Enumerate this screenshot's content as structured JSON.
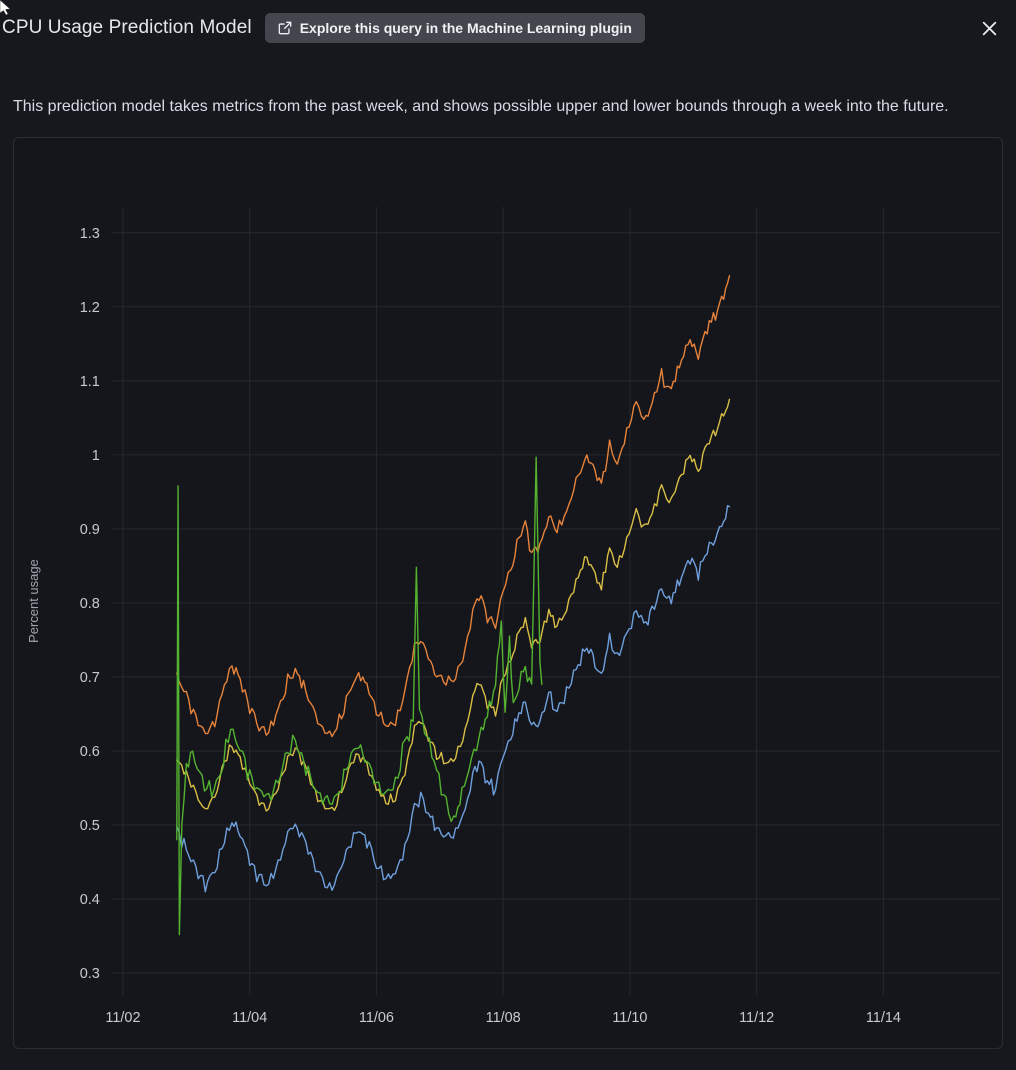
{
  "header": {
    "title": "CPU Usage Prediction Model",
    "explore_button": "Explore this query in the Machine Learning plugin"
  },
  "description": "This prediction model takes metrics from the past week, and shows possible upper and lower bounds through a week into the future.",
  "colors": {
    "background": "#17181d",
    "panel_background": "#15161b",
    "panel_border": "#2a2d34",
    "button_background": "#43464c",
    "title_text": "#e3e8ef",
    "body_text": "#d6dce6"
  },
  "chart_data": {
    "type": "line",
    "title": "",
    "xlabel": "",
    "ylabel": "Percent usage",
    "x_unit": "days since 11/02",
    "xlim": [
      -0.16,
      13.84
    ],
    "ylim": [
      0.27,
      1.335
    ],
    "grid": true,
    "legend": "none",
    "grid_color": "#26282f",
    "tick_color": "#c6cad2",
    "axis_label_color": "#9ea5ae",
    "x_ticks": [
      {
        "v": 0,
        "label": "11/02"
      },
      {
        "v": 2,
        "label": "11/04"
      },
      {
        "v": 4,
        "label": "11/06"
      },
      {
        "v": 6,
        "label": "11/08"
      },
      {
        "v": 8,
        "label": "11/10"
      },
      {
        "v": 10,
        "label": "11/12"
      },
      {
        "v": 12,
        "label": "11/14"
      }
    ],
    "y_ticks": [
      {
        "v": 0.3,
        "label": "0.3"
      },
      {
        "v": 0.4,
        "label": "0.4"
      },
      {
        "v": 0.5,
        "label": "0.5"
      },
      {
        "v": 0.6,
        "label": "0.6"
      },
      {
        "v": 0.7,
        "label": "0.7"
      },
      {
        "v": 0.8,
        "label": "0.8"
      },
      {
        "v": 0.9,
        "label": "0.9"
      },
      {
        "v": 1,
        "label": "1"
      },
      {
        "v": 1.1,
        "label": "1.1"
      },
      {
        "v": 1.2,
        "label": "1.2"
      },
      {
        "v": 1.3,
        "label": "1.3"
      }
    ],
    "series": [
      {
        "id": "lower_bound",
        "color": "#6ea0dd",
        "noise": 0.008,
        "seed": 37,
        "points": [
          [
            0.85,
            0.492
          ],
          [
            1.0,
            0.468
          ],
          [
            1.15,
            0.44
          ],
          [
            1.3,
            0.418
          ],
          [
            1.45,
            0.435
          ],
          [
            1.6,
            0.482
          ],
          [
            1.72,
            0.505
          ],
          [
            1.85,
            0.488
          ],
          [
            2.0,
            0.452
          ],
          [
            2.15,
            0.428
          ],
          [
            2.3,
            0.42
          ],
          [
            2.45,
            0.448
          ],
          [
            2.6,
            0.488
          ],
          [
            2.72,
            0.5
          ],
          [
            2.85,
            0.482
          ],
          [
            3.0,
            0.45
          ],
          [
            3.15,
            0.425
          ],
          [
            3.3,
            0.415
          ],
          [
            3.45,
            0.442
          ],
          [
            3.6,
            0.48
          ],
          [
            3.72,
            0.494
          ],
          [
            3.85,
            0.48
          ],
          [
            4.0,
            0.448
          ],
          [
            4.15,
            0.43
          ],
          [
            4.3,
            0.432
          ],
          [
            4.45,
            0.47
          ],
          [
            4.6,
            0.525
          ],
          [
            4.7,
            0.538
          ],
          [
            4.82,
            0.515
          ],
          [
            4.95,
            0.495
          ],
          [
            5.1,
            0.485
          ],
          [
            5.25,
            0.492
          ],
          [
            5.4,
            0.522
          ],
          [
            5.52,
            0.568
          ],
          [
            5.62,
            0.588
          ],
          [
            5.75,
            0.56
          ],
          [
            5.88,
            0.548
          ],
          [
            6.0,
            0.595
          ],
          [
            6.12,
            0.615
          ],
          [
            6.25,
            0.652
          ],
          [
            6.35,
            0.665
          ],
          [
            6.45,
            0.632
          ],
          [
            6.58,
            0.64
          ],
          [
            6.72,
            0.675
          ],
          [
            6.85,
            0.655
          ],
          [
            7.0,
            0.675
          ],
          [
            7.15,
            0.712
          ],
          [
            7.32,
            0.74
          ],
          [
            7.45,
            0.72
          ],
          [
            7.55,
            0.7
          ],
          [
            7.68,
            0.75
          ],
          [
            7.8,
            0.725
          ],
          [
            7.95,
            0.758
          ],
          [
            8.1,
            0.792
          ],
          [
            8.22,
            0.768
          ],
          [
            8.35,
            0.788
          ],
          [
            8.5,
            0.82
          ],
          [
            8.62,
            0.8
          ],
          [
            8.78,
            0.828
          ],
          [
            8.95,
            0.862
          ],
          [
            9.08,
            0.842
          ],
          [
            9.22,
            0.872
          ],
          [
            9.35,
            0.888
          ],
          [
            9.48,
            0.912
          ],
          [
            9.57,
            0.93
          ]
        ]
      },
      {
        "id": "prediction",
        "color": "#d9bf45",
        "noise": 0.006,
        "seed": 23,
        "points": [
          [
            0.85,
            0.59
          ],
          [
            1.0,
            0.57
          ],
          [
            1.15,
            0.542
          ],
          [
            1.3,
            0.52
          ],
          [
            1.45,
            0.538
          ],
          [
            1.6,
            0.585
          ],
          [
            1.72,
            0.608
          ],
          [
            1.85,
            0.59
          ],
          [
            2.0,
            0.556
          ],
          [
            2.15,
            0.53
          ],
          [
            2.3,
            0.522
          ],
          [
            2.45,
            0.55
          ],
          [
            2.6,
            0.59
          ],
          [
            2.72,
            0.602
          ],
          [
            2.85,
            0.585
          ],
          [
            3.0,
            0.552
          ],
          [
            3.15,
            0.528
          ],
          [
            3.3,
            0.518
          ],
          [
            3.45,
            0.545
          ],
          [
            3.6,
            0.582
          ],
          [
            3.72,
            0.596
          ],
          [
            3.85,
            0.582
          ],
          [
            4.0,
            0.55
          ],
          [
            4.15,
            0.532
          ],
          [
            4.3,
            0.534
          ],
          [
            4.45,
            0.572
          ],
          [
            4.6,
            0.63
          ],
          [
            4.7,
            0.642
          ],
          [
            4.82,
            0.618
          ],
          [
            4.95,
            0.596
          ],
          [
            5.1,
            0.585
          ],
          [
            5.25,
            0.592
          ],
          [
            5.4,
            0.625
          ],
          [
            5.52,
            0.675
          ],
          [
            5.62,
            0.695
          ],
          [
            5.75,
            0.665
          ],
          [
            5.88,
            0.652
          ],
          [
            6.0,
            0.7
          ],
          [
            6.12,
            0.722
          ],
          [
            6.25,
            0.762
          ],
          [
            6.35,
            0.778
          ],
          [
            6.45,
            0.742
          ],
          [
            6.58,
            0.75
          ],
          [
            6.72,
            0.788
          ],
          [
            6.85,
            0.768
          ],
          [
            7.0,
            0.79
          ],
          [
            7.15,
            0.83
          ],
          [
            7.32,
            0.862
          ],
          [
            7.45,
            0.84
          ],
          [
            7.55,
            0.82
          ],
          [
            7.68,
            0.875
          ],
          [
            7.8,
            0.848
          ],
          [
            7.95,
            0.885
          ],
          [
            8.1,
            0.925
          ],
          [
            8.22,
            0.9
          ],
          [
            8.35,
            0.92
          ],
          [
            8.5,
            0.958
          ],
          [
            8.62,
            0.935
          ],
          [
            8.78,
            0.965
          ],
          [
            8.95,
            1.002
          ],
          [
            9.08,
            0.98
          ],
          [
            9.22,
            1.015
          ],
          [
            9.35,
            1.03
          ],
          [
            9.48,
            1.055
          ],
          [
            9.57,
            1.075
          ]
        ]
      },
      {
        "id": "upper_bound",
        "color": "#e7833b",
        "noise": 0.007,
        "seed": 11,
        "points": [
          [
            0.85,
            0.7
          ],
          [
            1.0,
            0.675
          ],
          [
            1.15,
            0.645
          ],
          [
            1.3,
            0.622
          ],
          [
            1.45,
            0.64
          ],
          [
            1.6,
            0.69
          ],
          [
            1.72,
            0.715
          ],
          [
            1.85,
            0.695
          ],
          [
            2.0,
            0.66
          ],
          [
            2.15,
            0.632
          ],
          [
            2.3,
            0.625
          ],
          [
            2.45,
            0.655
          ],
          [
            2.6,
            0.695
          ],
          [
            2.72,
            0.708
          ],
          [
            2.85,
            0.69
          ],
          [
            3.0,
            0.655
          ],
          [
            3.15,
            0.63
          ],
          [
            3.3,
            0.62
          ],
          [
            3.45,
            0.648
          ],
          [
            3.6,
            0.688
          ],
          [
            3.72,
            0.702
          ],
          [
            3.85,
            0.688
          ],
          [
            4.0,
            0.655
          ],
          [
            4.15,
            0.636
          ],
          [
            4.3,
            0.638
          ],
          [
            4.45,
            0.68
          ],
          [
            4.6,
            0.74
          ],
          [
            4.7,
            0.752
          ],
          [
            4.82,
            0.725
          ],
          [
            4.95,
            0.702
          ],
          [
            5.1,
            0.692
          ],
          [
            5.25,
            0.7
          ],
          [
            5.4,
            0.735
          ],
          [
            5.52,
            0.79
          ],
          [
            5.62,
            0.812
          ],
          [
            5.75,
            0.782
          ],
          [
            5.88,
            0.768
          ],
          [
            6.0,
            0.82
          ],
          [
            6.12,
            0.845
          ],
          [
            6.25,
            0.888
          ],
          [
            6.35,
            0.905
          ],
          [
            6.45,
            0.868
          ],
          [
            6.58,
            0.878
          ],
          [
            6.72,
            0.918
          ],
          [
            6.85,
            0.898
          ],
          [
            7.0,
            0.922
          ],
          [
            7.15,
            0.965
          ],
          [
            7.32,
            1.0
          ],
          [
            7.45,
            0.978
          ],
          [
            7.55,
            0.958
          ],
          [
            7.68,
            1.015
          ],
          [
            7.8,
            0.988
          ],
          [
            7.95,
            1.028
          ],
          [
            8.1,
            1.072
          ],
          [
            8.22,
            1.048
          ],
          [
            8.35,
            1.068
          ],
          [
            8.5,
            1.108
          ],
          [
            8.62,
            1.085
          ],
          [
            8.78,
            1.118
          ],
          [
            8.95,
            1.158
          ],
          [
            9.08,
            1.135
          ],
          [
            9.22,
            1.172
          ],
          [
            9.35,
            1.19
          ],
          [
            9.48,
            1.218
          ],
          [
            9.57,
            1.242
          ]
        ]
      },
      {
        "id": "actual",
        "color": "#54b330",
        "noise": 0.01,
        "seed": 7,
        "points": [
          [
            0.85,
            0.48
          ],
          [
            0.87,
            0.958
          ],
          [
            0.89,
            0.352
          ],
          [
            0.93,
            0.5
          ],
          [
            1.0,
            0.578
          ],
          [
            1.1,
            0.598
          ],
          [
            1.25,
            0.56
          ],
          [
            1.4,
            0.545
          ],
          [
            1.55,
            0.572
          ],
          [
            1.7,
            0.632
          ],
          [
            1.85,
            0.605
          ],
          [
            2.0,
            0.565
          ],
          [
            2.15,
            0.542
          ],
          [
            2.3,
            0.538
          ],
          [
            2.45,
            0.562
          ],
          [
            2.6,
            0.6
          ],
          [
            2.72,
            0.612
          ],
          [
            2.85,
            0.588
          ],
          [
            3.0,
            0.555
          ],
          [
            3.15,
            0.535
          ],
          [
            3.3,
            0.528
          ],
          [
            3.45,
            0.552
          ],
          [
            3.6,
            0.592
          ],
          [
            3.72,
            0.605
          ],
          [
            3.85,
            0.588
          ],
          [
            4.0,
            0.552
          ],
          [
            4.15,
            0.54
          ],
          [
            4.3,
            0.558
          ],
          [
            4.45,
            0.612
          ],
          [
            4.58,
            0.64
          ],
          [
            4.63,
            0.848
          ],
          [
            4.68,
            0.65
          ],
          [
            4.8,
            0.618
          ],
          [
            4.95,
            0.572
          ],
          [
            5.1,
            0.528
          ],
          [
            5.22,
            0.505
          ],
          [
            5.35,
            0.54
          ],
          [
            5.5,
            0.585
          ],
          [
            5.62,
            0.618
          ],
          [
            5.75,
            0.648
          ],
          [
            5.88,
            0.692
          ],
          [
            5.97,
            0.778
          ],
          [
            6.03,
            0.648
          ],
          [
            6.1,
            0.762
          ],
          [
            6.16,
            0.652
          ],
          [
            6.25,
            0.695
          ],
          [
            6.35,
            0.712
          ],
          [
            6.45,
            0.685
          ],
          [
            6.52,
            0.997
          ],
          [
            6.58,
            0.72
          ],
          [
            6.61,
            0.69
          ]
        ]
      }
    ]
  }
}
